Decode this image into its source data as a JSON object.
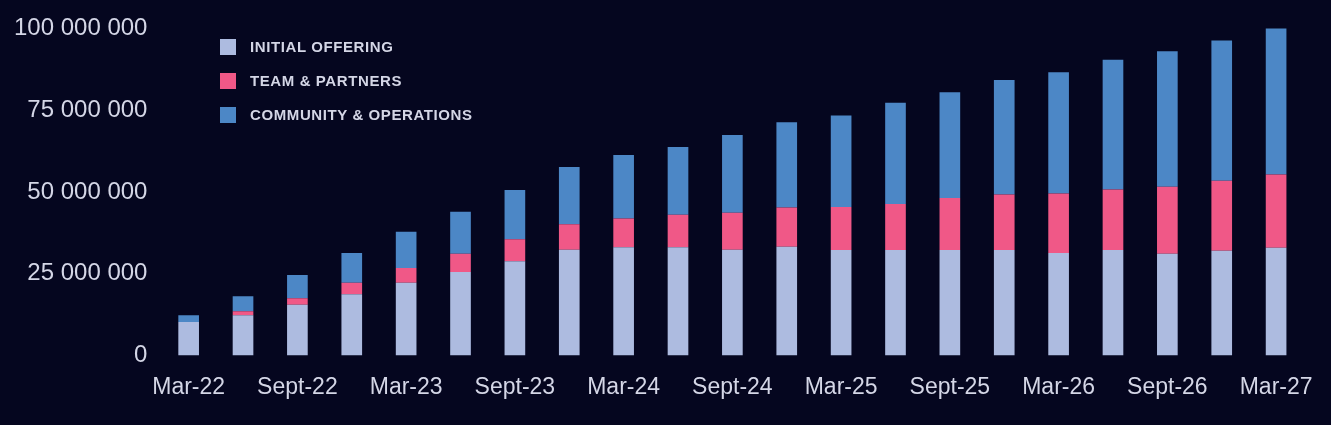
{
  "chart_data": {
    "type": "bar",
    "stacked": true,
    "legend": "top left",
    "grid": false,
    "categories": [
      "Mar-22",
      null,
      "Sept-22",
      null,
      "Mar-23",
      null,
      "Sept-23",
      null,
      "Mar-24",
      null,
      "Sept-24",
      null,
      "Mar-25",
      null,
      "Sept-25",
      null,
      "Mar-26",
      null,
      "Sept-26",
      null,
      "Mar-27"
    ],
    "series": [
      {
        "name": "INITIAL OFFERING",
        "color": "#adbbe0",
        "values": [
          10200000,
          12300000,
          15500000,
          18700000,
          22200000,
          25500000,
          28800000,
          32300000,
          33100000,
          33100000,
          32300000,
          33200000,
          32200000,
          32200000,
          32200000,
          32200000,
          31300000,
          32200000,
          31100000,
          32000000,
          32900000
        ]
      },
      {
        "name": "TEAM & PARTNERS",
        "color": "#f05887",
        "values": [
          0,
          1200000,
          2000000,
          3500000,
          4500000,
          5600000,
          6700000,
          7800000,
          8800000,
          9900000,
          11300000,
          12000000,
          13200000,
          14100000,
          15900000,
          17000000,
          18200000,
          18500000,
          20500000,
          21400000,
          22400000
        ]
      },
      {
        "name": "COMMUNITY & OPERATIONS",
        "color": "#4c87c6",
        "values": [
          2100000,
          4600000,
          7100000,
          9100000,
          11100000,
          12800000,
          15100000,
          17500000,
          19400000,
          20700000,
          23800000,
          26100000,
          28000000,
          31000000,
          32400000,
          35000000,
          37100000,
          39700000,
          41400000,
          42900000,
          44800000
        ]
      }
    ],
    "ylim": [
      0,
      100000000
    ],
    "yticks": [
      {
        "value": 0,
        "label": "0"
      },
      {
        "value": 25000000,
        "label": "25 000 000"
      },
      {
        "value": 50000000,
        "label": "50 000 000"
      },
      {
        "value": 75000000,
        "label": "75 000 000"
      },
      {
        "value": 100000000,
        "label": "100 000 000"
      }
    ]
  }
}
